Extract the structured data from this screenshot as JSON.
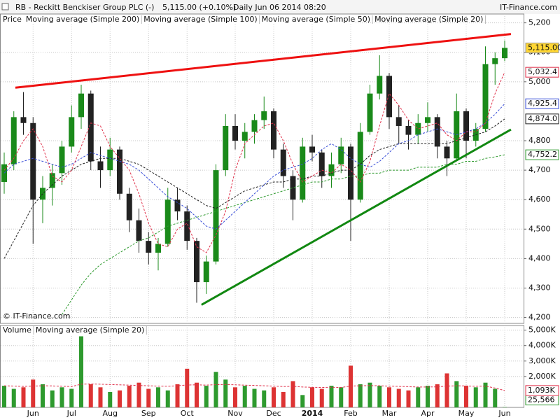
{
  "chart_data": [
    {
      "type": "candlestick",
      "title": "RB - Reckitt Benckiser Group PLC (-)",
      "quote": "5,115.00 (+0.10%)",
      "period": "Daily  Jun 06 2014 08:20",
      "source": "IT-Finance.com",
      "copyright": "© IT-Finance.com",
      "ohlc_name": "Price",
      "up_color": "#1a8a1a",
      "down_color": "#222222",
      "last_label": "5,115.00",
      "last_fill": "#ffd633",
      "open": [
        4660,
        4720,
        4880,
        4860,
        4600,
        4640,
        4690,
        4780,
        4880,
        4960,
        4730,
        4700,
        4770,
        4620,
        4530,
        4460,
        4420,
        4450,
        4600,
        4560,
        4460,
        4320,
        4390,
        4700,
        4850,
        4800,
        4830,
        4870,
        4900,
        4770,
        4680,
        4600,
        4780,
        4760,
        4680,
        4720,
        4780,
        4600,
        4830,
        4960,
        5020,
        4880,
        4850,
        4820,
        4860,
        4880,
        4780,
        4740,
        4900,
        4800,
        4840,
        5060,
        5080
      ],
      "high": [
        4760,
        4900,
        4965,
        4880,
        4680,
        4720,
        4800,
        4920,
        4990,
        4970,
        4780,
        4810,
        4780,
        4640,
        4570,
        4490,
        4470,
        4640,
        4640,
        4580,
        4470,
        4410,
        4720,
        4890,
        4890,
        4860,
        4890,
        4950,
        4910,
        4790,
        4700,
        4810,
        4820,
        4770,
        4760,
        4810,
        4790,
        4860,
        4990,
        5090,
        5030,
        4920,
        4870,
        4890,
        4930,
        4890,
        4800,
        4960,
        4910,
        4860,
        5120,
        5100,
        5140
      ],
      "low": [
        4620,
        4700,
        4820,
        4450,
        4520,
        4580,
        4650,
        4760,
        4840,
        4700,
        4640,
        4680,
        4600,
        4490,
        4420,
        4380,
        4360,
        4440,
        4530,
        4430,
        4250,
        4280,
        4380,
        4680,
        4770,
        4740,
        4790,
        4840,
        4740,
        4640,
        4530,
        4590,
        4730,
        4640,
        4640,
        4690,
        4460,
        4590,
        4820,
        4940,
        4840,
        4790,
        4770,
        4790,
        4830,
        4740,
        4680,
        4730,
        4740,
        4780,
        4830,
        4990,
        5070
      ],
      "close": [
        4720,
        4880,
        4860,
        4600,
        4640,
        4690,
        4780,
        4880,
        4960,
        4730,
        4700,
        4770,
        4620,
        4530,
        4460,
        4420,
        4450,
        4600,
        4560,
        4460,
        4320,
        4390,
        4700,
        4850,
        4800,
        4830,
        4870,
        4900,
        4770,
        4680,
        4600,
        4780,
        4760,
        4680,
        4720,
        4780,
        4600,
        4830,
        4960,
        5020,
        4880,
        4850,
        4820,
        4860,
        4880,
        4780,
        4740,
        4900,
        4800,
        4840,
        5060,
        5080,
        5115
      ],
      "series": [
        {
          "name": "Moving average (Simple 200)",
          "color": "#2e9a2e",
          "dashed": true,
          "last_label": "4,752.2",
          "values": [
            null,
            null,
            null,
            null,
            null,
            null,
            4210,
            4260,
            4310,
            4350,
            4380,
            4400,
            4420,
            4440,
            4460,
            4470,
            4490,
            4510,
            4520,
            4530,
            4540,
            4550,
            4560,
            4570,
            4580,
            4590,
            4600,
            4610,
            4620,
            4630,
            4640,
            4650,
            4660,
            4660,
            4670,
            4670,
            4680,
            4680,
            4690,
            4690,
            4700,
            4700,
            4700,
            4710,
            4710,
            4710,
            4720,
            4720,
            4730,
            4730,
            4740,
            4745,
            4752.2
          ]
        },
        {
          "name": "Moving average (Simple 100)",
          "color": "#222222",
          "dashed": true,
          "last_label": "4,874.0",
          "values": [
            4400,
            4460,
            4520,
            4580,
            4620,
            4650,
            4680,
            4700,
            4720,
            4730,
            4740,
            4740,
            4740,
            4730,
            4720,
            4700,
            4680,
            4660,
            4640,
            4620,
            4600,
            4580,
            4570,
            4590,
            4610,
            4630,
            4640,
            4650,
            4660,
            4660,
            4670,
            4670,
            4680,
            4680,
            4690,
            4700,
            4700,
            4720,
            4750,
            4770,
            4780,
            4790,
            4790,
            4790,
            4790,
            4790,
            4790,
            4800,
            4810,
            4820,
            4830,
            4850,
            4874.0
          ]
        },
        {
          "name": "Moving average (Simple 50)",
          "color": "#3a4fd8",
          "dashed": true,
          "last_label": "4,925.4",
          "values": [
            4690,
            4720,
            4730,
            4740,
            4730,
            4720,
            4710,
            4720,
            4740,
            4760,
            4750,
            4740,
            4730,
            4720,
            4700,
            4670,
            4640,
            4610,
            4590,
            4570,
            4540,
            4510,
            4500,
            4530,
            4560,
            4590,
            4620,
            4650,
            4680,
            4700,
            4710,
            4720,
            4740,
            4770,
            4790,
            4770,
            4740,
            4720,
            4710,
            4730,
            4760,
            4790,
            4800,
            4820,
            4830,
            4840,
            4830,
            4820,
            4830,
            4840,
            4860,
            4890,
            4925.4
          ]
        },
        {
          "name": "Moving average (Simple 20)",
          "color": "#e0304a",
          "dashed": true,
          "last_label": "5,032.4",
          "values": [
            4700,
            4740,
            4800,
            4840,
            4780,
            4680,
            4660,
            4700,
            4780,
            4860,
            4850,
            4780,
            4740,
            4700,
            4620,
            4520,
            4450,
            4440,
            4500,
            4520,
            4440,
            4420,
            4480,
            4560,
            4700,
            4790,
            4820,
            4850,
            4860,
            4800,
            4720,
            4660,
            4680,
            4700,
            4690,
            4720,
            4700,
            4660,
            4730,
            4850,
            4960,
            4920,
            4870,
            4840,
            4850,
            4860,
            4820,
            4800,
            4830,
            4830,
            4860,
            4960,
            5032.4
          ]
        }
      ],
      "trendlines": [
        {
          "color": "#ee1111",
          "x": [
            1.16,
            52.65
          ],
          "values": [
            4980,
            5162
          ]
        },
        {
          "color": "#118811",
          "x": [
            20.5,
            52.65
          ],
          "values": [
            4243,
            4838
          ]
        }
      ],
      "ylim": [
        4180,
        5230
      ],
      "yticks": [
        {
          "value": 4200,
          "label": "4,200"
        },
        {
          "value": 4300,
          "label": "4,300"
        },
        {
          "value": 4400,
          "label": "4,400"
        },
        {
          "value": 4500,
          "label": "4,500"
        },
        {
          "value": 4600,
          "label": "4,600"
        },
        {
          "value": 4700,
          "label": "4,700"
        },
        {
          "value": 4800,
          "label": "4,800"
        },
        {
          "value": 5000,
          "label": "5,000"
        },
        {
          "value": 5100,
          "label": "5,100"
        },
        {
          "value": 5200,
          "label": "5,200"
        }
      ],
      "grid": true
    },
    {
      "type": "bar",
      "categories": [
        null,
        null,
        null,
        "Jun",
        null,
        null,
        null,
        "Jul",
        null,
        null,
        null,
        "Aug",
        null,
        null,
        null,
        "Sep",
        null,
        null,
        null,
        "Oct",
        null,
        null,
        null,
        null,
        "Nov",
        null,
        null,
        null,
        "Dec",
        null,
        null,
        null,
        "2014",
        null,
        null,
        null,
        "Feb",
        null,
        null,
        null,
        "Mar",
        null,
        null,
        null,
        "Apr",
        null,
        null,
        null,
        "May",
        null,
        null,
        null,
        "Jun"
      ],
      "series": [
        {
          "name": "Volume",
          "color": "#2e9a2e",
          "style": "bar",
          "last_label": "25,566",
          "values": [
            1400,
            1200,
            1300,
            1800,
            1500,
            1100,
            1300,
            1200,
            4600,
            1500,
            1300,
            1000,
            1100,
            1400,
            1600,
            1200,
            1300,
            1100,
            1500,
            2500,
            1600,
            1400,
            2300,
            1800,
            1300,
            1400,
            1200,
            1100,
            1300,
            1000,
            1700,
            800,
            1300,
            1200,
            1400,
            1300,
            2700,
            1500,
            1600,
            1400,
            1300,
            1200,
            1100,
            1300,
            1400,
            1500,
            2200,
            1700,
            1400,
            1300,
            1600,
            1200,
            25.566
          ]
        },
        {
          "name": "Moving average (Simple 20)",
          "color": "#e0304a",
          "style": "line",
          "dashed": true,
          "last_label": "1,093K",
          "values": [
            1400,
            1380,
            1360,
            1380,
            1400,
            1390,
            1370,
            1350,
            1500,
            1520,
            1500,
            1480,
            1460,
            1440,
            1420,
            1400,
            1380,
            1370,
            1400,
            1450,
            1460,
            1440,
            1470,
            1480,
            1460,
            1440,
            1420,
            1400,
            1380,
            1350,
            1360,
            1320,
            1300,
            1290,
            1300,
            1290,
            1380,
            1400,
            1410,
            1400,
            1380,
            1360,
            1340,
            1320,
            1320,
            1330,
            1380,
            1400,
            1390,
            1370,
            1380,
            1250,
            1093
          ]
        }
      ],
      "down_color": "#dd3333",
      "ylim": [
        0,
        5300
      ],
      "yticks": [
        {
          "value": 2000,
          "label": "2,000K"
        },
        {
          "value": 3000,
          "label": "3,000K"
        },
        {
          "value": 4000,
          "label": "4,000K"
        },
        {
          "value": 5000,
          "label": "5,000K"
        }
      ],
      "grid": true
    }
  ]
}
